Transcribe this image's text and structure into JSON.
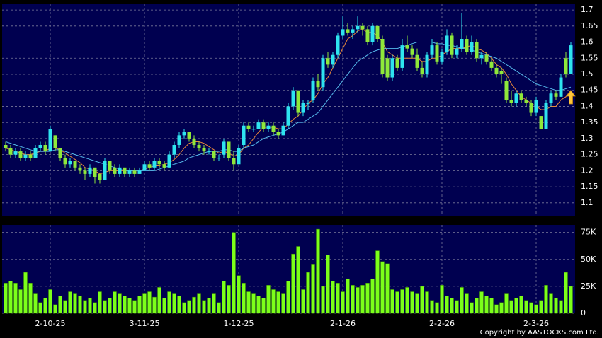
{
  "chart_data": [
    {
      "type": "candlestick",
      "categories": [
        null,
        null,
        null,
        null,
        null,
        null,
        null,
        null,
        null,
        "2-10-25",
        null,
        null,
        null,
        null,
        null,
        null,
        null,
        null,
        null,
        null,
        null,
        null,
        null,
        null,
        null,
        null,
        null,
        null,
        "3-11-25",
        null,
        null,
        null,
        null,
        null,
        null,
        null,
        null,
        null,
        null,
        null,
        null,
        null,
        null,
        null,
        null,
        null,
        null,
        "1-12-25",
        null,
        null,
        null,
        null,
        null,
        null,
        null,
        null,
        null,
        null,
        null,
        null,
        null,
        null,
        null,
        null,
        null,
        null,
        null,
        null,
        "2-1-26",
        null,
        null,
        null,
        null,
        null,
        null,
        null,
        null,
        null,
        null,
        null,
        null,
        null,
        null,
        null,
        null,
        null,
        null,
        null,
        "2-2-26",
        null,
        null,
        null,
        null,
        null,
        null,
        null,
        null,
        null,
        null,
        null,
        null,
        null,
        null,
        null,
        null,
        null,
        null,
        "2-3-26",
        null,
        null,
        null,
        null,
        null,
        null,
        null
      ],
      "candles": [
        [
          1.28,
          1.29,
          1.26,
          1.27
        ],
        [
          1.27,
          1.28,
          1.24,
          1.25
        ],
        [
          1.25,
          1.27,
          1.24,
          1.26
        ],
        [
          1.26,
          1.27,
          1.23,
          1.24
        ],
        [
          1.24,
          1.26,
          1.23,
          1.25
        ],
        [
          1.25,
          1.26,
          1.23,
          1.24
        ],
        [
          1.24,
          1.28,
          1.24,
          1.27
        ],
        [
          1.27,
          1.29,
          1.26,
          1.28
        ],
        [
          1.28,
          1.29,
          1.25,
          1.26
        ],
        [
          1.26,
          1.34,
          1.26,
          1.33
        ],
        [
          1.31,
          1.31,
          1.26,
          1.27
        ],
        [
          1.27,
          1.27,
          1.23,
          1.24
        ],
        [
          1.24,
          1.25,
          1.21,
          1.22
        ],
        [
          1.22,
          1.24,
          1.21,
          1.23
        ],
        [
          1.23,
          1.23,
          1.2,
          1.21
        ],
        [
          1.21,
          1.22,
          1.19,
          1.2
        ],
        [
          1.2,
          1.21,
          1.17,
          1.19
        ],
        [
          1.19,
          1.22,
          1.18,
          1.21
        ],
        [
          1.21,
          1.21,
          1.16,
          1.18
        ],
        [
          1.19,
          1.19,
          1.16,
          1.17
        ],
        [
          1.17,
          1.24,
          1.17,
          1.23
        ],
        [
          1.23,
          1.23,
          1.19,
          1.2
        ],
        [
          1.21,
          1.22,
          1.18,
          1.19
        ],
        [
          1.19,
          1.22,
          1.18,
          1.21
        ],
        [
          1.21,
          1.21,
          1.18,
          1.19
        ],
        [
          1.19,
          1.21,
          1.18,
          1.2
        ],
        [
          1.2,
          1.21,
          1.18,
          1.19
        ],
        [
          1.19,
          1.21,
          1.19,
          1.2
        ],
        [
          1.2,
          1.23,
          1.2,
          1.22
        ],
        [
          1.22,
          1.23,
          1.2,
          1.21
        ],
        [
          1.21,
          1.24,
          1.2,
          1.23
        ],
        [
          1.23,
          1.24,
          1.21,
          1.22
        ],
        [
          1.22,
          1.23,
          1.2,
          1.21
        ],
        [
          1.21,
          1.26,
          1.21,
          1.25
        ],
        [
          1.25,
          1.29,
          1.24,
          1.28
        ],
        [
          1.28,
          1.32,
          1.27,
          1.31
        ],
        [
          1.31,
          1.33,
          1.3,
          1.32
        ],
        [
          1.32,
          1.32,
          1.29,
          1.3
        ],
        [
          1.3,
          1.31,
          1.27,
          1.28
        ],
        [
          1.28,
          1.29,
          1.26,
          1.27
        ],
        [
          1.27,
          1.28,
          1.25,
          1.26
        ],
        [
          1.26,
          1.27,
          1.25,
          1.26
        ],
        [
          1.26,
          1.26,
          1.23,
          1.24
        ],
        [
          1.24,
          1.25,
          1.23,
          1.24
        ],
        [
          1.25,
          1.3,
          1.24,
          1.29
        ],
        [
          1.29,
          1.29,
          1.23,
          1.24
        ],
        [
          1.24,
          1.26,
          1.2,
          1.22
        ],
        [
          1.22,
          1.28,
          1.22,
          1.27
        ],
        [
          1.28,
          1.35,
          1.27,
          1.34
        ],
        [
          1.34,
          1.35,
          1.32,
          1.33
        ],
        [
          1.33,
          1.34,
          1.32,
          1.33
        ],
        [
          1.33,
          1.36,
          1.33,
          1.35
        ],
        [
          1.35,
          1.36,
          1.32,
          1.33
        ],
        [
          1.33,
          1.35,
          1.32,
          1.34
        ],
        [
          1.34,
          1.35,
          1.31,
          1.32
        ],
        [
          1.32,
          1.33,
          1.3,
          1.31
        ],
        [
          1.31,
          1.35,
          1.31,
          1.34
        ],
        [
          1.34,
          1.41,
          1.33,
          1.4
        ],
        [
          1.4,
          1.46,
          1.39,
          1.45
        ],
        [
          1.45,
          1.45,
          1.37,
          1.38
        ],
        [
          1.38,
          1.42,
          1.37,
          1.41
        ],
        [
          1.41,
          1.42,
          1.39,
          1.41
        ],
        [
          1.42,
          1.49,
          1.41,
          1.48
        ],
        [
          1.48,
          1.5,
          1.45,
          1.46
        ],
        [
          1.46,
          1.56,
          1.45,
          1.55
        ],
        [
          1.55,
          1.57,
          1.52,
          1.53
        ],
        [
          1.53,
          1.57,
          1.52,
          1.56
        ],
        [
          1.56,
          1.63,
          1.55,
          1.62
        ],
        [
          1.62,
          1.68,
          1.61,
          1.64
        ],
        [
          1.64,
          1.66,
          1.62,
          1.63
        ],
        [
          1.63,
          1.65,
          1.61,
          1.64
        ],
        [
          1.64,
          1.68,
          1.63,
          1.65
        ],
        [
          1.65,
          1.66,
          1.62,
          1.64
        ],
        [
          1.64,
          1.65,
          1.59,
          1.6
        ],
        [
          1.6,
          1.66,
          1.59,
          1.65
        ],
        [
          1.65,
          1.65,
          1.6,
          1.61
        ],
        [
          1.61,
          1.62,
          1.49,
          1.5
        ],
        [
          1.55,
          1.56,
          1.48,
          1.49
        ],
        [
          1.49,
          1.56,
          1.48,
          1.55
        ],
        [
          1.55,
          1.56,
          1.51,
          1.52
        ],
        [
          1.52,
          1.61,
          1.51,
          1.59
        ],
        [
          1.59,
          1.62,
          1.57,
          1.58
        ],
        [
          1.58,
          1.59,
          1.55,
          1.56
        ],
        [
          1.56,
          1.58,
          1.51,
          1.52
        ],
        [
          1.52,
          1.54,
          1.49,
          1.5
        ],
        [
          1.5,
          1.57,
          1.49,
          1.56
        ],
        [
          1.56,
          1.61,
          1.55,
          1.59
        ],
        [
          1.59,
          1.6,
          1.53,
          1.54
        ],
        [
          1.54,
          1.58,
          1.53,
          1.57
        ],
        [
          1.57,
          1.64,
          1.56,
          1.62
        ],
        [
          1.62,
          1.63,
          1.55,
          1.56
        ],
        [
          1.56,
          1.59,
          1.55,
          1.58
        ],
        [
          1.58,
          1.69,
          1.57,
          1.61
        ],
        [
          1.61,
          1.62,
          1.56,
          1.57
        ],
        [
          1.57,
          1.62,
          1.56,
          1.6
        ],
        [
          1.6,
          1.61,
          1.54,
          1.55
        ],
        [
          1.55,
          1.57,
          1.53,
          1.56
        ],
        [
          1.56,
          1.57,
          1.53,
          1.54
        ],
        [
          1.54,
          1.55,
          1.51,
          1.52
        ],
        [
          1.52,
          1.53,
          1.49,
          1.5
        ],
        [
          1.51,
          1.52,
          1.47,
          1.5
        ],
        [
          1.48,
          1.49,
          1.41,
          1.42
        ],
        [
          1.42,
          1.45,
          1.4,
          1.41
        ],
        [
          1.41,
          1.45,
          1.4,
          1.44
        ],
        [
          1.44,
          1.45,
          1.41,
          1.42
        ],
        [
          1.42,
          1.43,
          1.4,
          1.41
        ],
        [
          1.41,
          1.42,
          1.37,
          1.38
        ],
        [
          1.38,
          1.43,
          1.37,
          1.42
        ],
        [
          1.37,
          1.37,
          1.33,
          1.33
        ],
        [
          1.33,
          1.42,
          1.33,
          1.41
        ],
        [
          1.41,
          1.45,
          1.4,
          1.44
        ],
        [
          1.44,
          1.45,
          1.42,
          1.43
        ],
        [
          1.43,
          1.5,
          1.43,
          1.49
        ],
        [
          1.55,
          1.57,
          1.49,
          1.5
        ],
        [
          1.5,
          1.6,
          1.5,
          1.59
        ]
      ],
      "up_color": "#2ee4ef",
      "down_color": "#8fe83a",
      "series": [
        {
          "color": "#e8873a",
          "values": [
            1.27,
            1.265,
            1.26,
            1.255,
            1.25,
            1.25,
            1.255,
            1.26,
            1.26,
            1.27,
            1.27,
            1.265,
            1.255,
            1.245,
            1.235,
            1.225,
            1.21,
            1.205,
            1.2,
            1.19,
            1.195,
            1.2,
            1.2,
            1.2,
            1.2,
            1.2,
            1.2,
            1.2,
            1.205,
            1.21,
            1.215,
            1.215,
            1.22,
            1.225,
            1.235,
            1.25,
            1.27,
            1.285,
            1.29,
            1.29,
            1.285,
            1.275,
            1.265,
            1.255,
            1.26,
            1.255,
            1.245,
            1.25,
            1.27,
            1.28,
            1.3,
            1.32,
            1.335,
            1.335,
            1.335,
            1.33,
            1.33,
            1.345,
            1.36,
            1.37,
            1.39,
            1.41,
            1.42,
            1.44,
            1.47,
            1.49,
            1.52,
            1.55,
            1.58,
            1.61,
            1.62,
            1.635,
            1.64,
            1.63,
            1.63,
            1.62,
            1.6,
            1.57,
            1.56,
            1.55,
            1.55,
            1.55,
            1.55,
            1.55,
            1.54,
            1.54,
            1.55,
            1.55,
            1.56,
            1.57,
            1.58,
            1.58,
            1.58,
            1.585,
            1.59,
            1.58,
            1.575,
            1.565,
            1.55,
            1.53,
            1.52,
            1.5,
            1.47,
            1.45,
            1.43,
            1.42,
            1.41,
            1.4,
            1.39,
            1.39,
            1.4,
            1.4,
            1.42,
            1.43,
            1.45
          ]
        },
        {
          "color": "#55b8ea",
          "values": [
            1.29,
            1.285,
            1.28,
            1.275,
            1.27,
            1.265,
            1.26,
            1.26,
            1.26,
            1.26,
            1.265,
            1.265,
            1.26,
            1.255,
            1.25,
            1.245,
            1.24,
            1.235,
            1.23,
            1.225,
            1.22,
            1.215,
            1.21,
            1.205,
            1.2,
            1.2,
            1.2,
            1.2,
            1.2,
            1.2,
            1.2,
            1.205,
            1.21,
            1.215,
            1.22,
            1.225,
            1.23,
            1.24,
            1.245,
            1.25,
            1.255,
            1.26,
            1.26,
            1.26,
            1.265,
            1.265,
            1.26,
            1.26,
            1.27,
            1.275,
            1.28,
            1.29,
            1.3,
            1.305,
            1.31,
            1.315,
            1.32,
            1.33,
            1.34,
            1.35,
            1.35,
            1.36,
            1.37,
            1.38,
            1.4,
            1.42,
            1.44,
            1.46,
            1.48,
            1.5,
            1.52,
            1.54,
            1.55,
            1.56,
            1.57,
            1.575,
            1.58,
            1.58,
            1.58,
            1.58,
            1.585,
            1.59,
            1.595,
            1.6,
            1.6,
            1.6,
            1.6,
            1.595,
            1.595,
            1.59,
            1.59,
            1.585,
            1.58,
            1.58,
            1.575,
            1.57,
            1.565,
            1.56,
            1.555,
            1.55,
            1.54,
            1.53,
            1.52,
            1.51,
            1.5,
            1.49,
            1.48,
            1.47,
            1.465,
            1.46,
            1.455,
            1.45,
            1.45,
            1.455,
            1.46
          ]
        }
      ],
      "ylim": [
        1.06,
        1.72
      ],
      "yticks": [
        1.1,
        1.15,
        1.2,
        1.25,
        1.3,
        1.35,
        1.4,
        1.45,
        1.5,
        1.55,
        1.6,
        1.65,
        1.7
      ],
      "grid": true
    },
    {
      "type": "bar",
      "values": [
        28000,
        30000,
        28000,
        22000,
        38000,
        28000,
        18000,
        10000,
        14000,
        22000,
        8000,
        16000,
        12000,
        20000,
        18000,
        16000,
        12000,
        14000,
        10000,
        20000,
        12000,
        14000,
        20000,
        18000,
        16000,
        14000,
        12000,
        16000,
        18000,
        20000,
        15000,
        24000,
        14000,
        20000,
        18000,
        16000,
        10000,
        12000,
        15000,
        18000,
        12000,
        14000,
        18000,
        10000,
        30000,
        26000,
        75000,
        35000,
        28000,
        20000,
        18000,
        16000,
        14000,
        26000,
        22000,
        20000,
        18000,
        30000,
        55000,
        62000,
        22000,
        38000,
        45000,
        78000,
        25000,
        54000,
        30000,
        28000,
        20000,
        32000,
        26000,
        24000,
        26000,
        28000,
        32000,
        58000,
        48000,
        46000,
        22000,
        20000,
        22000,
        24000,
        20000,
        18000,
        25000,
        20000,
        12000,
        10000,
        26000,
        16000,
        14000,
        12000,
        24000,
        18000,
        10000,
        14000,
        20000,
        16000,
        14000,
        8000,
        10000,
        18000,
        12000,
        14000,
        16000,
        12000,
        10000,
        8000,
        12000,
        26000,
        18000,
        14000,
        12000,
        38000,
        25000
      ],
      "color": "#7cff1a",
      "ylim": [
        0,
        82000
      ],
      "yticks": [
        0,
        {
          "value": 25000,
          "label": "25K"
        },
        {
          "value": 50000,
          "label": "50K"
        },
        {
          "value": 75000,
          "label": "75K"
        }
      ],
      "grid": true
    }
  ],
  "copyright": "Copyright by AASTOCKS.com Ltd."
}
